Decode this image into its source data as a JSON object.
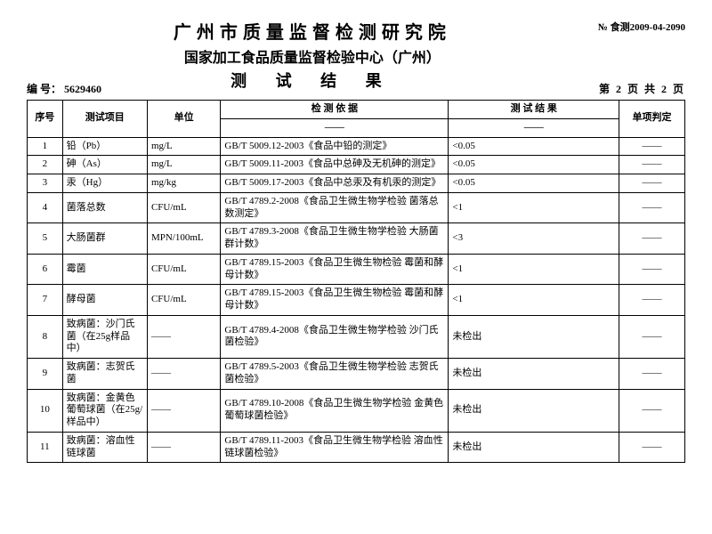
{
  "header": {
    "org1": "广州市质量监督检测研究院",
    "org2": "国家加工食品质量监督检验中心（广州）",
    "title": "测 试 结 果",
    "docno": "№ 食测2009-04-2090",
    "serial_label": "编 号：",
    "serial": "5629460",
    "page": "第 2 页 共  2  页"
  },
  "columns": {
    "idx": "序号",
    "item": "测试项目",
    "unit": "单位",
    "standard": "检 测 依 据",
    "result": "测 试 结 果",
    "judge": "单项判定",
    "dash": "——"
  },
  "rows": [
    {
      "idx": "1",
      "item": "铅（Pb）",
      "unit": "mg/L",
      "std": "GB/T 5009.12-2003《食品中铅的测定》",
      "res": "<0.05",
      "jdg": "——"
    },
    {
      "idx": "2",
      "item": "砷（As）",
      "unit": "mg/L",
      "std": "GB/T 5009.11-2003《食品中总砷及无机砷的测定》",
      "res": "<0.05",
      "jdg": "——"
    },
    {
      "idx": "3",
      "item": "汞（Hg）",
      "unit": "mg/kg",
      "std": "GB/T 5009.17-2003《食品中总汞及有机汞的测定》",
      "res": "<0.05",
      "jdg": "——"
    },
    {
      "idx": "4",
      "item": "菌落总数",
      "unit": "CFU/mL",
      "std": "GB/T 4789.2-2008《食品卫生微生物学检验 菌落总数测定》",
      "res": "<1",
      "jdg": "——"
    },
    {
      "idx": "5",
      "item": "大肠菌群",
      "unit": "MPN/100mL",
      "std": "GB/T 4789.3-2008《食品卫生微生物学检验 大肠菌群计数》",
      "res": "<3",
      "jdg": "——"
    },
    {
      "idx": "6",
      "item": "霉菌",
      "unit": "CFU/mL",
      "std": "GB/T 4789.15-2003《食品卫生微生物检验 霉菌和酵母计数》",
      "res": "<1",
      "jdg": "——"
    },
    {
      "idx": "7",
      "item": "酵母菌",
      "unit": "CFU/mL",
      "std": "GB/T 4789.15-2003《食品卫生微生物检验 霉菌和酵母计数》",
      "res": "<1",
      "jdg": "——"
    },
    {
      "idx": "8",
      "item": "致病菌：沙门氏菌（在25g样品中）",
      "unit": "——",
      "std": "GB/T 4789.4-2008《食品卫生微生物学检验 沙门氏菌检验》",
      "res": "未检出",
      "jdg": "——"
    },
    {
      "idx": "9",
      "item": "致病菌：志贺氏菌",
      "unit": "——",
      "std": "GB/T 4789.5-2003《食品卫生微生物学检验 志贺氏菌检验》",
      "res": "未检出",
      "jdg": "——"
    },
    {
      "idx": "10",
      "item": "致病菌：金黄色葡萄球菌（在25g/样品中）",
      "unit": "——",
      "std": "GB/T 4789.10-2008《食品卫生微生物学检验 金黄色葡萄球菌检验》",
      "res": "未检出",
      "jdg": "——"
    },
    {
      "idx": "11",
      "item": "致病菌：溶血性链球菌",
      "unit": "——",
      "std": "GB/T 4789.11-2003《食品卫生微生物学检验 溶血性链球菌检验》",
      "res": "未检出",
      "jdg": "——"
    }
  ]
}
